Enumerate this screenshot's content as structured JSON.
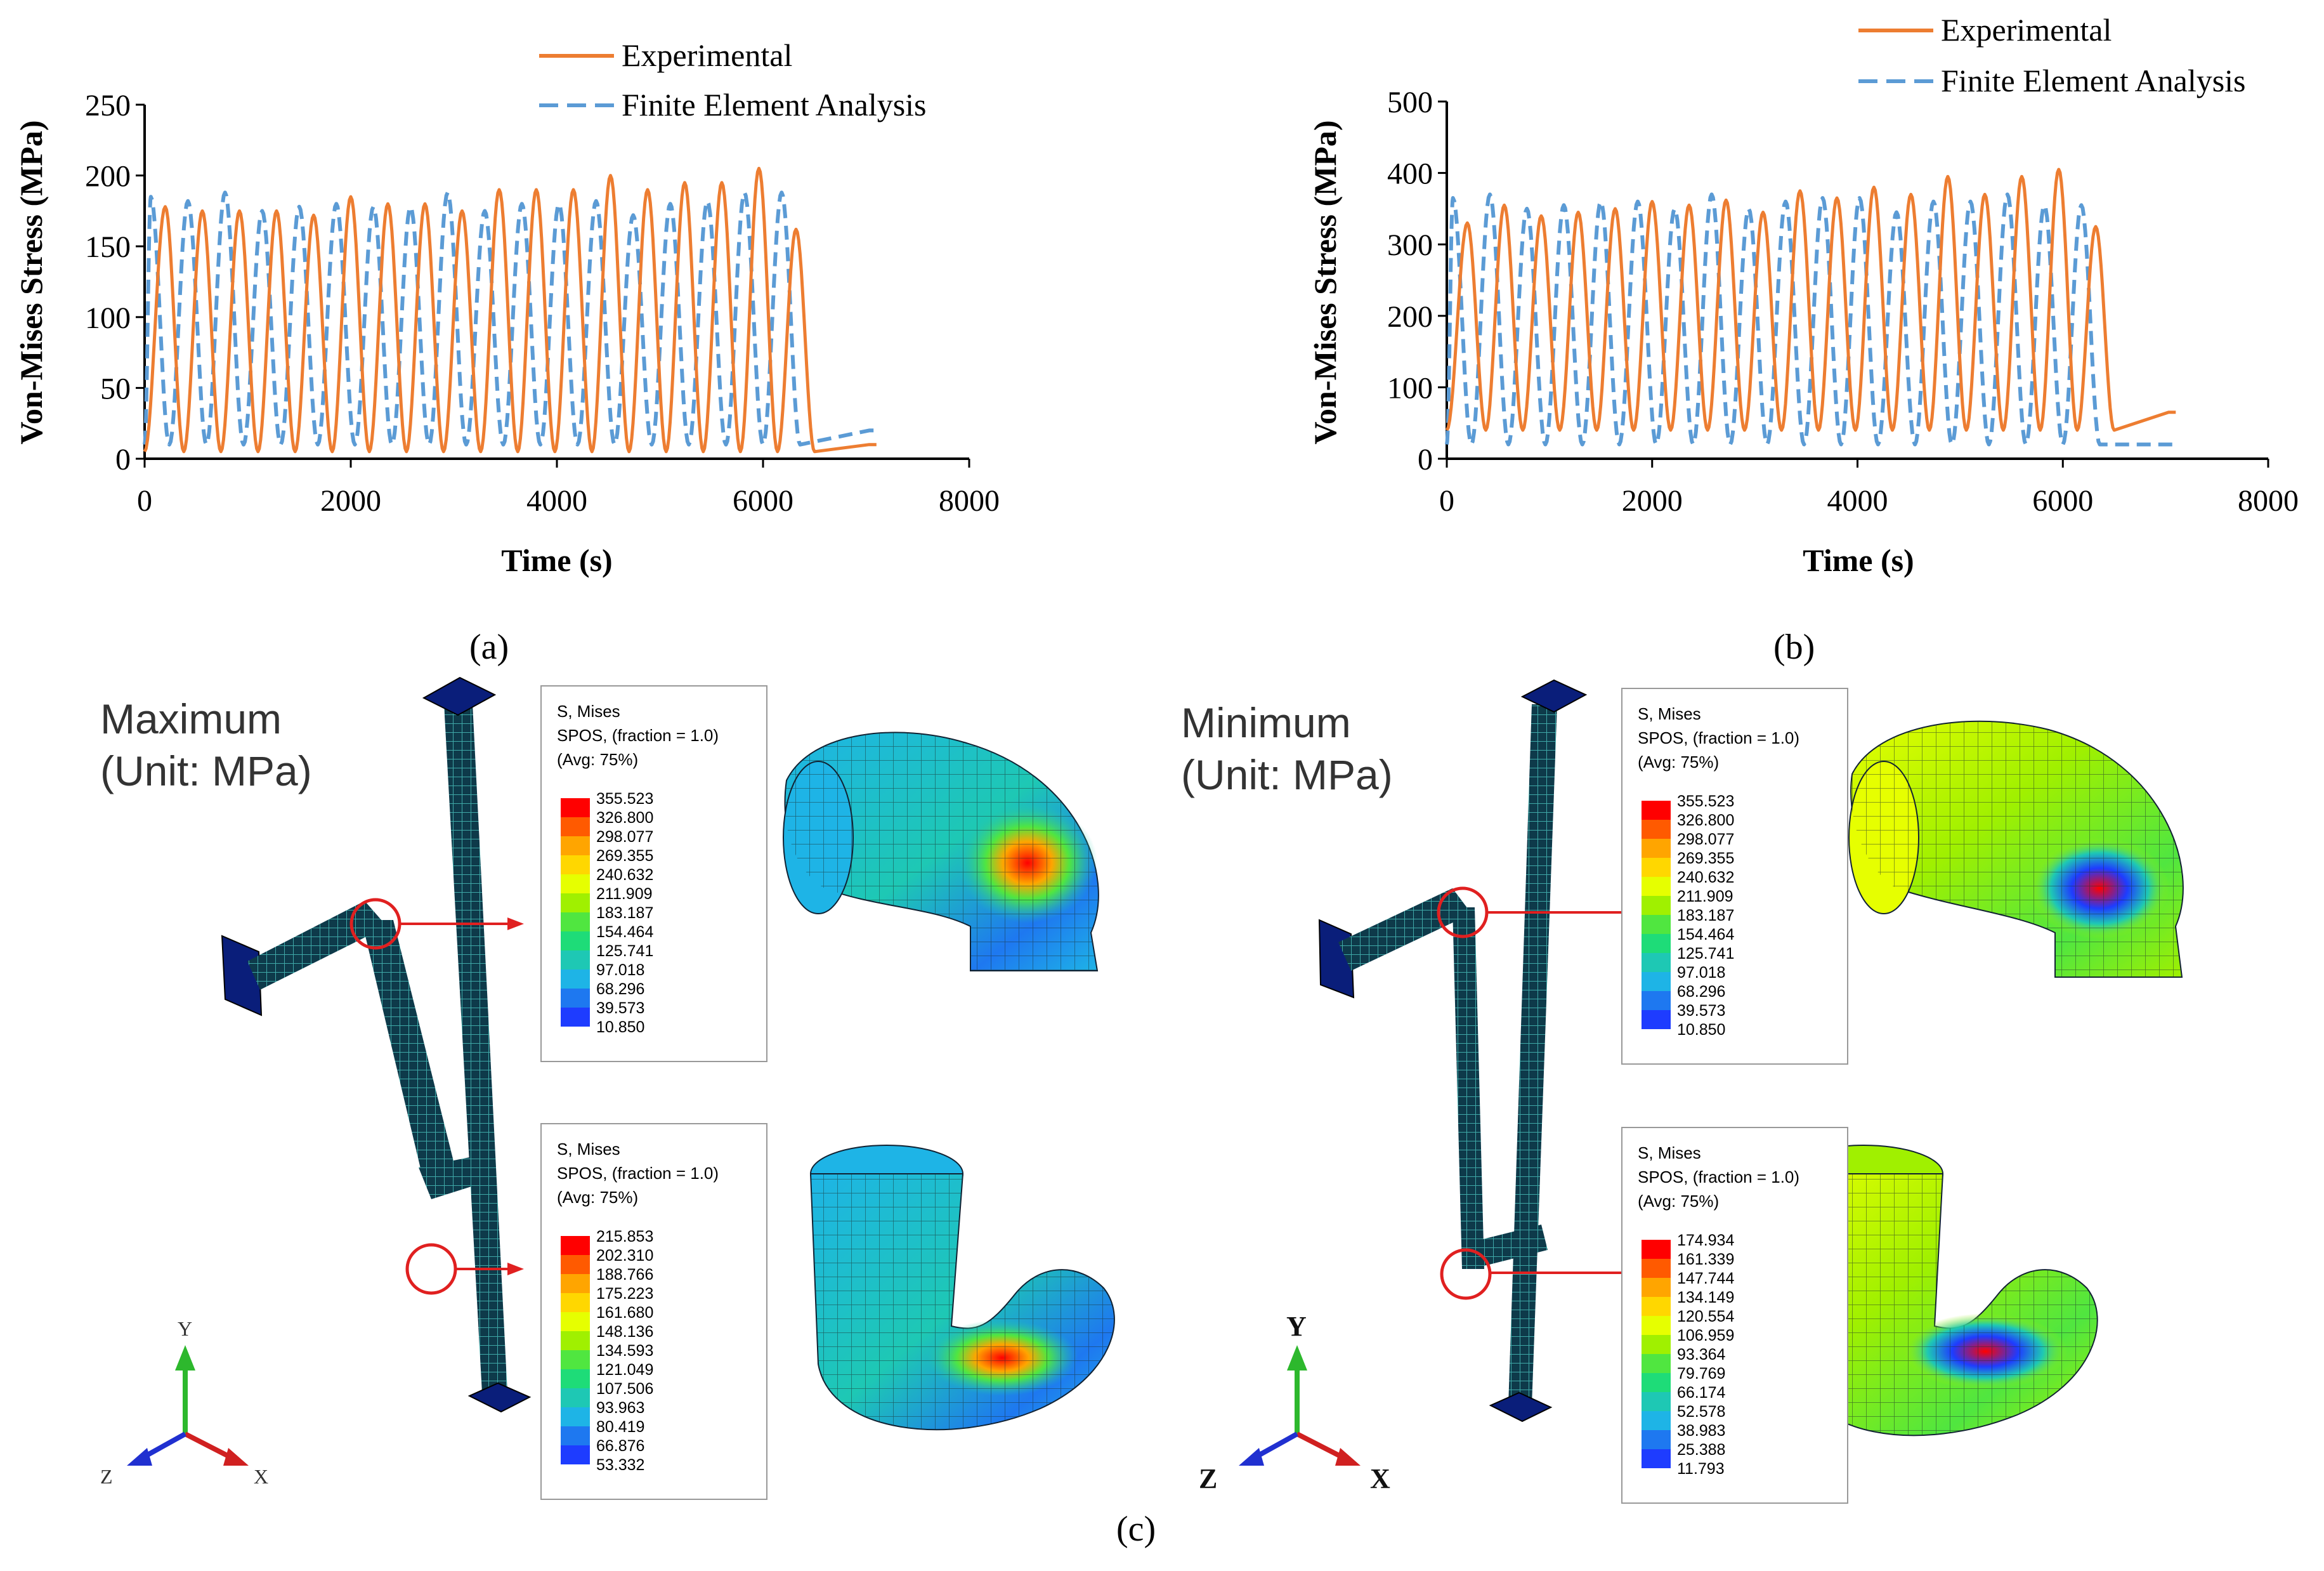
{
  "chart_data": [
    {
      "type": "line",
      "panel": "a",
      "xlabel": "Time (s)",
      "ylabel": "Von-Mises Stress (MPa)",
      "xlim": [
        0,
        8000
      ],
      "ylim": [
        0,
        250
      ],
      "xticks": [
        0,
        2000,
        4000,
        6000,
        8000
      ],
      "yticks": [
        0,
        50,
        100,
        150,
        200,
        250
      ],
      "legend_position": "top-center",
      "series": [
        {
          "name": "Experimental",
          "style": "solid",
          "color": "#ED7D31",
          "period_s": 360,
          "phase_s": 200,
          "end_s": 7100,
          "peaks": [
            178,
            175,
            175,
            175,
            172,
            185,
            180,
            180,
            175,
            190,
            190,
            190,
            200,
            190,
            195,
            195,
            205,
            162
          ],
          "troughs": [
            5,
            5,
            5,
            5,
            5,
            5,
            5,
            5,
            5,
            5,
            5,
            5,
            5,
            5,
            5,
            5,
            5,
            5
          ],
          "tail_value": 10
        },
        {
          "name": "Finite Element Analysis",
          "style": "dashed",
          "color": "#5B9BD5",
          "period_s": 360,
          "phase_s": 60,
          "end_s": 7100,
          "peaks": [
            185,
            182,
            188,
            175,
            178,
            180,
            178,
            178,
            188,
            175,
            180,
            180,
            182,
            172,
            180,
            182,
            188,
            188
          ],
          "troughs": [
            10,
            10,
            10,
            10,
            10,
            10,
            10,
            10,
            10,
            10,
            10,
            10,
            10,
            10,
            10,
            10,
            10,
            10
          ],
          "tail_value": 20
        }
      ]
    },
    {
      "type": "line",
      "panel": "b",
      "xlabel": "Time (s)",
      "ylabel": "Von-Mises Stress (MPa)",
      "xlim": [
        0,
        8000
      ],
      "ylim": [
        0,
        500
      ],
      "xticks": [
        0,
        2000,
        4000,
        6000,
        8000
      ],
      "yticks": [
        0,
        100,
        200,
        300,
        400,
        500
      ],
      "legend_position": "top-right",
      "series": [
        {
          "name": "Experimental",
          "style": "solid",
          "color": "#ED7D31",
          "period_s": 360,
          "phase_s": 200,
          "end_s": 7100,
          "peaks": [
            330,
            355,
            340,
            345,
            350,
            360,
            355,
            362,
            345,
            375,
            365,
            380,
            370,
            395,
            370,
            395,
            405,
            325
          ],
          "troughs": [
            40,
            40,
            40,
            40,
            40,
            40,
            40,
            40,
            40,
            40,
            40,
            40,
            40,
            40,
            40,
            40,
            40,
            40
          ],
          "tail_value": 65
        },
        {
          "name": "Finite Element Analysis",
          "style": "dashed",
          "color": "#5B9BD5",
          "period_s": 360,
          "phase_s": 60,
          "end_s": 7100,
          "peaks": [
            365,
            370,
            350,
            355,
            360,
            360,
            350,
            370,
            350,
            360,
            365,
            365,
            345,
            360,
            360,
            370,
            355,
            355
          ],
          "troughs": [
            20,
            20,
            20,
            20,
            20,
            20,
            20,
            20,
            20,
            20,
            20,
            20,
            20,
            20,
            20,
            20,
            20,
            20
          ],
          "tail_value": 20
        }
      ]
    }
  ],
  "panel_labels": {
    "a": "(a)",
    "b": "(b)",
    "c": "(c)"
  },
  "fea": {
    "left": {
      "title_line1": "Maximum",
      "title_line2": "(Unit: MPa)",
      "legend_top": {
        "line1": "S, Mises",
        "line2": "SPOS, (fraction = 1.0)",
        "line3": "(Avg: 75%)",
        "values": [
          "355.523",
          "326.800",
          "298.077",
          "269.355",
          "240.632",
          "211.909",
          "183.187",
          "154.464",
          "125.741",
          "97.018",
          "68.296",
          "39.573",
          "10.850"
        ]
      },
      "legend_bottom": {
        "line1": "S, Mises",
        "line2": "SPOS, (fraction = 1.0)",
        "line3": "(Avg: 75%)",
        "values": [
          "215.853",
          "202.310",
          "188.766",
          "175.223",
          "161.680",
          "148.136",
          "134.593",
          "121.049",
          "107.506",
          "93.963",
          "80.419",
          "66.876",
          "53.332"
        ]
      },
      "axes": {
        "y": "Y",
        "z": "Z",
        "x": "X"
      }
    },
    "right": {
      "title_line1": "Minimum",
      "title_line2": "(Unit: MPa)",
      "legend_top": {
        "line1": "S, Mises",
        "line2": "SPOS, (fraction = 1.0)",
        "line3": "(Avg: 75%)",
        "values": [
          "355.523",
          "326.800",
          "298.077",
          "269.355",
          "240.632",
          "211.909",
          "183.187",
          "154.464",
          "125.741",
          "97.018",
          "68.296",
          "39.573",
          "10.850"
        ]
      },
      "legend_bottom": {
        "line1": "S, Mises",
        "line2": "SPOS, (fraction = 1.0)",
        "line3": "(Avg: 75%)",
        "values": [
          "174.934",
          "161.339",
          "147.744",
          "134.149",
          "120.554",
          "106.959",
          "93.364",
          "79.769",
          "66.174",
          "52.578",
          "38.983",
          "25.388",
          "11.793"
        ]
      },
      "axes": {
        "y": "Y",
        "z": "Z",
        "x": "X"
      }
    }
  },
  "colors": {
    "experimental": "#ED7D31",
    "fea": "#5B9BD5",
    "colormap": [
      "#FF0000",
      "#FF5A00",
      "#FFA500",
      "#FFD700",
      "#E6FF00",
      "#A0F000",
      "#50E640",
      "#1EDC78",
      "#1EC8B4",
      "#1EB4E6",
      "#1E78F0",
      "#1E3CFF",
      "#0000E6"
    ],
    "callout": "#E02020",
    "pipe": "#0E3A4A"
  }
}
